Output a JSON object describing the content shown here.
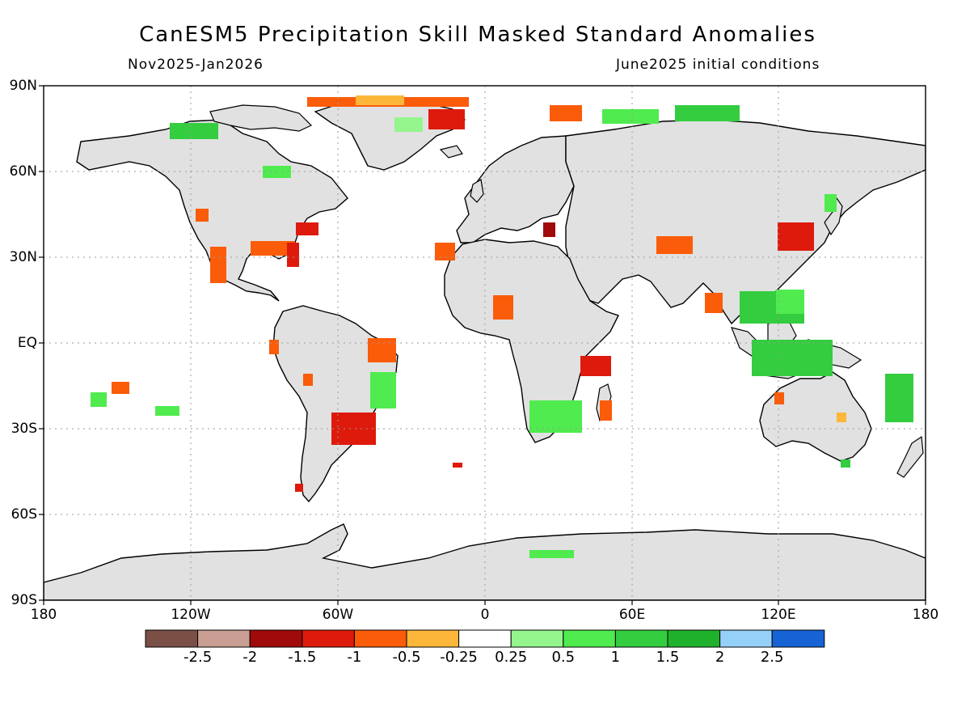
{
  "header": {
    "title": "CanESM5 Precipitation Skill Masked Standard Anomalies",
    "period": "Nov2025-Jan2026",
    "init": "June2025 initial conditions"
  },
  "map": {
    "lat_labels": [
      "90N",
      "60N",
      "30N",
      "EQ",
      "30S",
      "60S",
      "90S"
    ],
    "lon_labels": [
      "180",
      "120W",
      "60W",
      "0",
      "60E",
      "120E",
      "180"
    ],
    "land_color": "#e1e1e1",
    "ocean_color": "#ffffff",
    "coast_color": "#000000"
  },
  "colorbar": {
    "labels": [
      "-2.5",
      "-2",
      "-1.5",
      "-1",
      "-0.5",
      "-0.25",
      "0.25",
      "0.5",
      "1",
      "1.5",
      "2",
      "2.5"
    ],
    "colors": [
      "#7a4f45",
      "#c99f93",
      "#a00a0a",
      "#dd1a0c",
      "#fa5c0a",
      "#fcb73a",
      "#ffffff",
      "#95f58d",
      "#4feb4f",
      "#33cd3f",
      "#20b12c",
      "#95d0f8",
      "#1663d6"
    ]
  }
}
